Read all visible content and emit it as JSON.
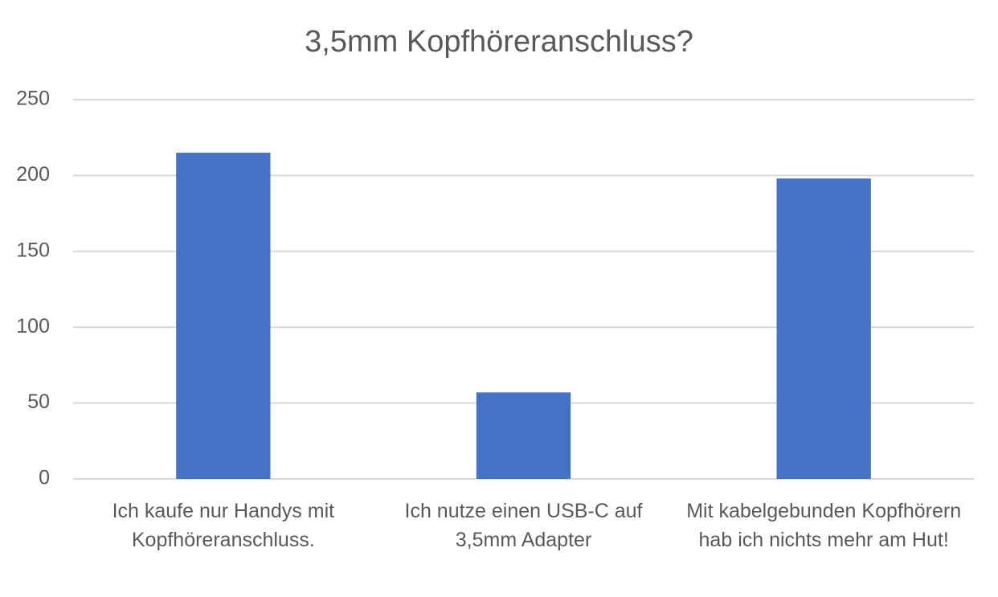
{
  "chart_data": {
    "type": "bar",
    "title": "3,5mm Kopfhöreranschluss?",
    "categories": [
      "Ich kaufe nur Handys mit Kopfhöreranschluss.",
      "Ich nutze einen USB-C auf 3,5mm Adapter",
      "Mit kabelgebunden Kopfhörern hab ich nichts mehr am Hut!"
    ],
    "values": [
      215,
      57,
      198
    ],
    "color": "#4472c4",
    "ylim": [
      0,
      250
    ],
    "yticks": [
      0,
      50,
      100,
      150,
      200,
      250
    ],
    "grid": true
  }
}
